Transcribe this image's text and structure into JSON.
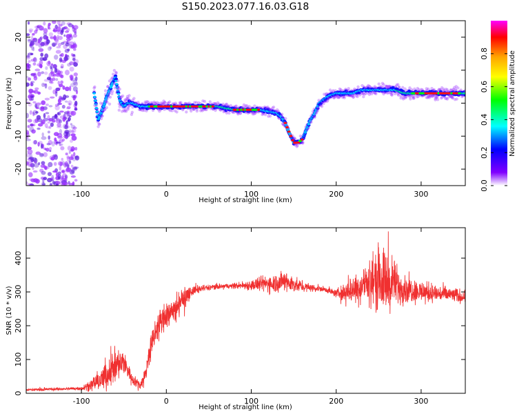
{
  "title": "S150.2023.077.16.03.G18",
  "colors": {
    "snr_line": "#f03030",
    "track_low": "#9b30ff",
    "track_mid": "#00ff00",
    "track_high": "#ff1010"
  },
  "chart_data": [
    {
      "type": "heatmap",
      "title": "",
      "xlabel": "Height of straight line (km)",
      "ylabel": "Frequency (Hz)",
      "xlim": [
        -165,
        352
      ],
      "ylim": [
        -25,
        25
      ],
      "x_ticks": [
        -100,
        0,
        100,
        200,
        300
      ],
      "y_ticks": [
        -20,
        -10,
        0,
        10,
        20
      ],
      "colorbar": {
        "label": "Normalized spectral amplitude",
        "range": [
          0,
          1
        ],
        "ticks": [
          0.0,
          0.2,
          0.4,
          0.6,
          0.8
        ],
        "colormap": [
          "#ff00ff",
          "#ff0000",
          "#ffa500",
          "#ffff00",
          "#00ff00",
          "#00ffff",
          "#0000ff",
          "#8000ff",
          "#ffffff"
        ]
      },
      "ridge": {
        "x": [
          -85,
          -80,
          -75,
          -70,
          -65,
          -60,
          -55,
          -50,
          -45,
          -40,
          -30,
          -20,
          -10,
          0,
          20,
          40,
          60,
          80,
          100,
          110,
          120,
          130,
          135,
          140,
          145,
          150,
          155,
          160,
          165,
          170,
          175,
          180,
          185,
          190,
          200,
          210,
          220,
          230,
          240,
          250,
          260,
          270,
          280,
          290,
          300,
          320,
          340,
          352
        ],
        "y": [
          3,
          -5,
          -2,
          2,
          5,
          8,
          1,
          -1,
          0,
          0,
          -1,
          -1,
          -1,
          -1,
          -1,
          -1,
          -1,
          -2,
          -2,
          -2,
          -2.5,
          -3,
          -4,
          -6,
          -9,
          -12,
          -12,
          -11,
          -8,
          -5,
          -3,
          0,
          1,
          2,
          3,
          3,
          3,
          4,
          4,
          4,
          4,
          4,
          3,
          3,
          3,
          3,
          3,
          3
        ]
      }
    },
    {
      "type": "line",
      "title": "",
      "xlabel": "Height of straight line (km)",
      "ylabel": "SNR (10 * v/v)",
      "xlim": [
        -165,
        352
      ],
      "ylim": [
        0,
        490
      ],
      "x_ticks": [
        -100,
        0,
        100,
        200,
        300
      ],
      "y_ticks": [
        0,
        100,
        200,
        300,
        400
      ],
      "series": [
        {
          "x": [
            -165,
            -140,
            -120,
            -100,
            -90,
            -80,
            -70,
            -60,
            -50,
            -45,
            -40,
            -30,
            -25,
            -20,
            -10,
            0,
            10,
            20,
            30,
            40,
            60,
            80,
            100,
            120,
            140,
            160,
            180,
            190,
            200,
            210,
            220,
            230,
            240,
            250,
            260,
            270,
            280,
            300,
            320,
            340,
            352
          ],
          "y": [
            10,
            12,
            13,
            15,
            25,
            35,
            55,
            80,
            90,
            70,
            40,
            25,
            50,
            120,
            200,
            230,
            250,
            280,
            300,
            310,
            315,
            318,
            320,
            325,
            330,
            315,
            310,
            305,
            295,
            300,
            310,
            320,
            330,
            340,
            330,
            320,
            310,
            300,
            295,
            290,
            285
          ],
          "noise": [
            3,
            4,
            4,
            5,
            15,
            25,
            40,
            50,
            40,
            25,
            15,
            10,
            30,
            40,
            40,
            40,
            40,
            30,
            15,
            10,
            8,
            8,
            15,
            25,
            30,
            15,
            8,
            8,
            10,
            30,
            40,
            50,
            70,
            90,
            90,
            60,
            40,
            30,
            25,
            20,
            20
          ]
        }
      ]
    }
  ]
}
